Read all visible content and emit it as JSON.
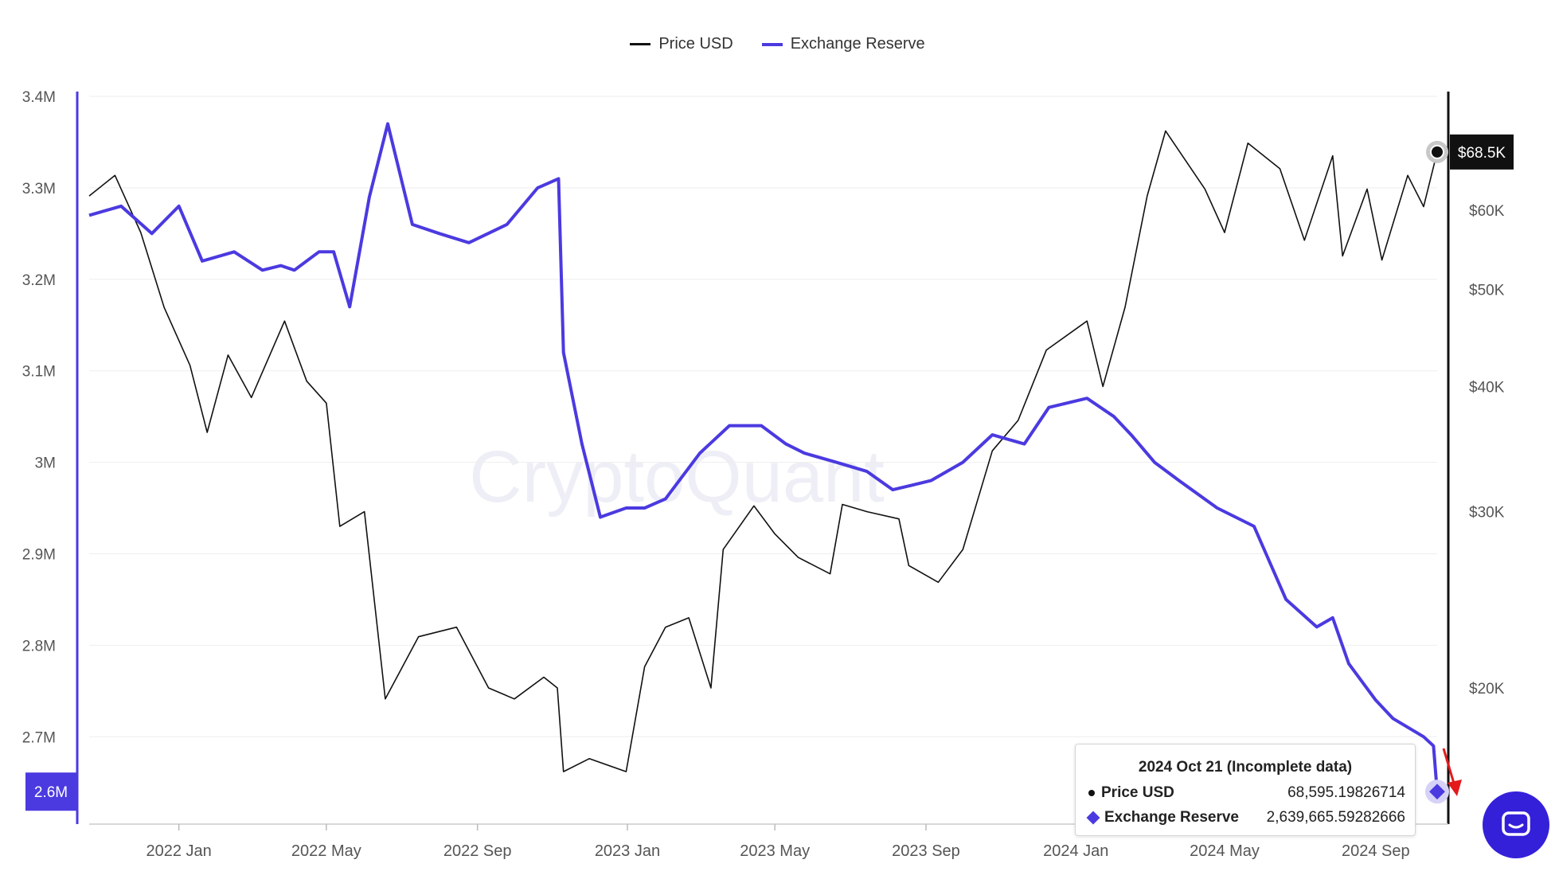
{
  "legend": {
    "price_label": "Price USD",
    "reserve_label": "Exchange Reserve"
  },
  "watermark": "CryptoQuant",
  "badges": {
    "price_current": "$68.5K",
    "reserve_current": "2.6M"
  },
  "tooltip": {
    "title": "2024 Oct 21 (Incomplete data)",
    "price_label": "Price USD",
    "price_value": "68,595.19826714",
    "reserve_label": "Exchange Reserve",
    "reserve_value": "2,639,665.59282666"
  },
  "colors": {
    "price": "#111111",
    "reserve": "#4b3ae0",
    "annotation_arrow": "#e3191c",
    "chat_button": "#3520d9"
  },
  "icons": {
    "chat_button": "chat-bubble-icon",
    "annotation": "red-arrow-icon"
  },
  "chart_data": {
    "type": "line",
    "x_ticks": [
      "2022 Jan",
      "2022 May",
      "2022 Sep",
      "2023 Jan",
      "2023 May",
      "2023 Sep",
      "2024 Jan",
      "2024 May",
      "2024 Sep"
    ],
    "y_left_ticks": [
      "3.4M",
      "3.3M",
      "3.2M",
      "3.1M",
      "3M",
      "2.9M",
      "2.8M",
      "2.7M"
    ],
    "y_right_ticks": [
      "$60K",
      "$50K",
      "$40K",
      "$30K",
      "$20K"
    ],
    "y_left_range": [
      2.6,
      3.4
    ],
    "y_right_scale": "log",
    "x_range": [
      "2021-10-20",
      "2024-10-21"
    ],
    "grid": true,
    "legend_position": "top-center",
    "series": [
      {
        "name": "Price USD",
        "axis": "right",
        "x": [
          "2021-10-20",
          "2021-11-10",
          "2021-12-01",
          "2021-12-20",
          "2022-01-10",
          "2022-01-24",
          "2022-02-10",
          "2022-03-01",
          "2022-03-28",
          "2022-04-15",
          "2022-05-01",
          "2022-05-12",
          "2022-06-01",
          "2022-06-18",
          "2022-07-15",
          "2022-08-15",
          "2022-09-10",
          "2022-10-01",
          "2022-10-25",
          "2022-11-05",
          "2022-11-10",
          "2022-12-01",
          "2022-12-31",
          "2023-01-15",
          "2023-02-01",
          "2023-02-20",
          "2023-03-10",
          "2023-03-20",
          "2023-04-14",
          "2023-05-01",
          "2023-05-20",
          "2023-06-15",
          "2023-06-25",
          "2023-07-15",
          "2023-08-10",
          "2023-08-18",
          "2023-09-11",
          "2023-10-01",
          "2023-10-25",
          "2023-11-15",
          "2023-12-08",
          "2024-01-10",
          "2024-01-23",
          "2024-02-10",
          "2024-02-28",
          "2024-03-14",
          "2024-04-15",
          "2024-05-01",
          "2024-05-20",
          "2024-06-15",
          "2024-07-05",
          "2024-07-28",
          "2024-08-05",
          "2024-08-25",
          "2024-09-06",
          "2024-09-27",
          "2024-10-10",
          "2024-10-21"
        ],
        "values": [
          62000,
          65000,
          57000,
          48000,
          42000,
          36000,
          43000,
          39000,
          46500,
          40500,
          38500,
          29000,
          30000,
          19500,
          22500,
          23000,
          20000,
          19500,
          20500,
          20000,
          16500,
          17000,
          16500,
          21000,
          23000,
          23500,
          20000,
          27500,
          30400,
          28500,
          27000,
          26000,
          30500,
          30000,
          29500,
          26500,
          25500,
          27500,
          34500,
          37000,
          43500,
          46500,
          40000,
          48000,
          62000,
          72000,
          63000,
          57000,
          70000,
          66000,
          56000,
          68000,
          54000,
          63000,
          53500,
          65000,
          60500,
          68595
        ]
      },
      {
        "name": "Exchange Reserve",
        "axis": "left",
        "x": [
          "2021-10-20",
          "2021-11-15",
          "2021-12-10",
          "2022-01-01",
          "2022-01-20",
          "2022-02-15",
          "2022-03-10",
          "2022-03-25",
          "2022-04-05",
          "2022-04-25",
          "2022-05-07",
          "2022-05-20",
          "2022-06-05",
          "2022-06-20",
          "2022-07-10",
          "2022-08-01",
          "2022-08-25",
          "2022-09-25",
          "2022-10-20",
          "2022-11-06",
          "2022-11-10",
          "2022-11-25",
          "2022-12-10",
          "2022-12-31",
          "2023-01-15",
          "2023-02-01",
          "2023-03-01",
          "2023-03-25",
          "2023-04-20",
          "2023-05-10",
          "2023-05-25",
          "2023-06-20",
          "2023-07-15",
          "2023-08-05",
          "2023-09-05",
          "2023-10-01",
          "2023-10-25",
          "2023-11-20",
          "2023-12-10",
          "2024-01-10",
          "2024-02-01",
          "2024-02-15",
          "2024-03-05",
          "2024-03-25",
          "2024-04-25",
          "2024-05-25",
          "2024-06-20",
          "2024-07-15",
          "2024-07-28",
          "2024-08-10",
          "2024-09-01",
          "2024-09-15",
          "2024-10-10",
          "2024-10-18",
          "2024-10-21"
        ],
        "values": [
          3.27,
          3.28,
          3.25,
          3.28,
          3.22,
          3.23,
          3.21,
          3.215,
          3.21,
          3.23,
          3.23,
          3.17,
          3.29,
          3.37,
          3.26,
          3.25,
          3.24,
          3.26,
          3.3,
          3.31,
          3.12,
          3.02,
          2.94,
          2.95,
          2.95,
          2.96,
          3.01,
          3.04,
          3.04,
          3.02,
          3.01,
          3.0,
          2.99,
          2.97,
          2.98,
          3.0,
          3.03,
          3.02,
          3.06,
          3.07,
          3.05,
          3.03,
          3.0,
          2.98,
          2.95,
          2.93,
          2.85,
          2.82,
          2.83,
          2.78,
          2.74,
          2.72,
          2.7,
          2.69,
          2.64
        ]
      }
    ]
  }
}
